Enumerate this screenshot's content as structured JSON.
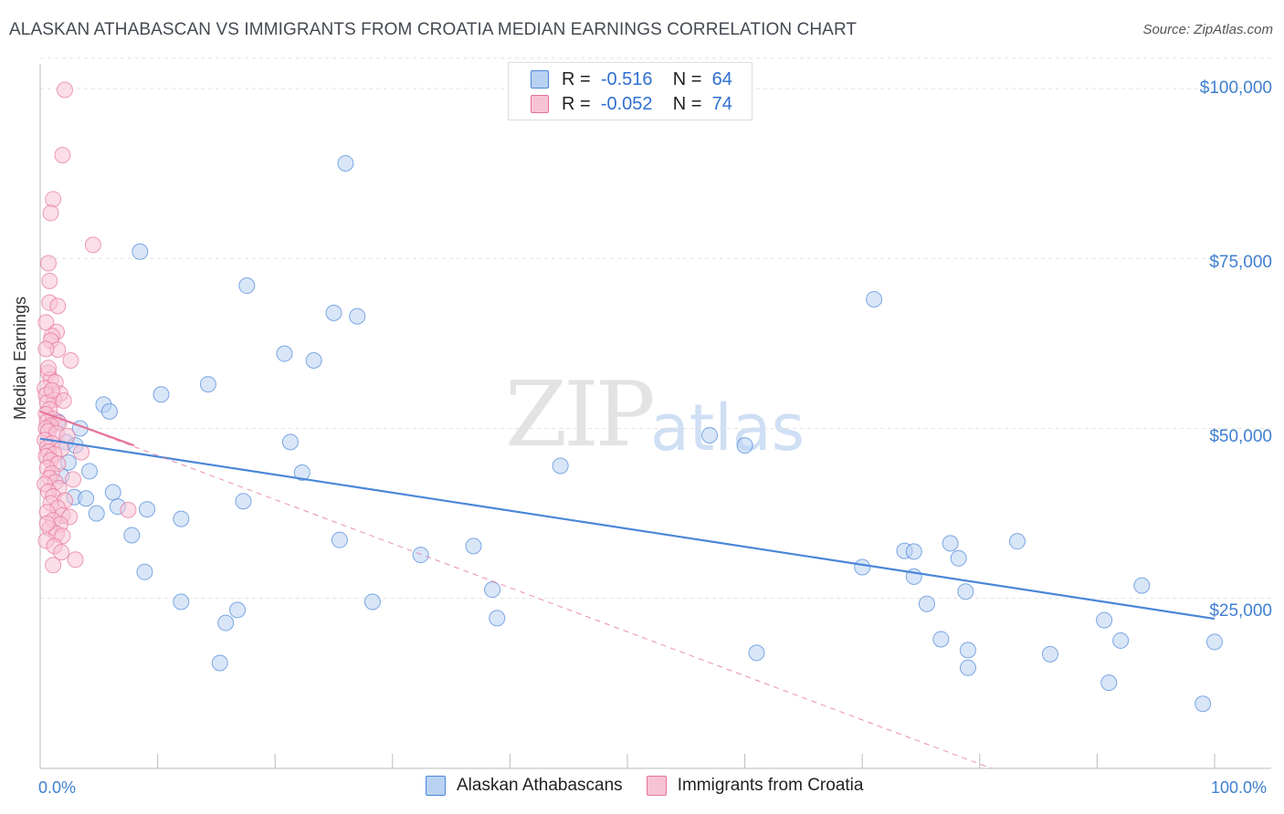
{
  "header": {
    "title": "ALASKAN ATHABASCAN VS IMMIGRANTS FROM CROATIA MEDIAN EARNINGS CORRELATION CHART",
    "source": "Source: ZipAtlas.com"
  },
  "watermark": {
    "zip": "ZIP",
    "atlas": "atlas"
  },
  "legend": {
    "row1": {
      "r_label": "R =",
      "r_value": "-0.516",
      "n_label": "N =",
      "n_value": "64"
    },
    "row2": {
      "r_label": "R =",
      "r_value": "-0.052",
      "n_label": "N =",
      "n_value": "74"
    }
  },
  "chart_data": {
    "type": "scatter",
    "title": "ALASKAN ATHABASCAN VS IMMIGRANTS FROM CROATIA MEDIAN EARNINGS CORRELATION CHART",
    "xlabel": "",
    "ylabel": "Median Earnings",
    "xlim": [
      0,
      100
    ],
    "ylim": [
      0,
      105000
    ],
    "x_tick_labels": [
      "0.0%",
      "100.0%"
    ],
    "y_ticks": [
      25000,
      50000,
      75000,
      100000
    ],
    "y_tick_labels": [
      "$25,000",
      "$50,000",
      "$75,000",
      "$100,000"
    ],
    "colors": {
      "blue": "#4a86d8",
      "pink": "#e5739a",
      "blue_fill": "#b9d2f2",
      "pink_fill": "#f7c3d4"
    },
    "series": [
      {
        "name": "Alaskan Athabascans",
        "color": "#4a86d8",
        "trend": {
          "x": [
            0,
            100
          ],
          "y": [
            48500,
            22000
          ],
          "style": "solid"
        },
        "points": [
          [
            26.0,
            89000
          ],
          [
            8.5,
            76000
          ],
          [
            17.6,
            71000
          ],
          [
            71.0,
            69000
          ],
          [
            25.0,
            67000
          ],
          [
            27.0,
            66500
          ],
          [
            20.8,
            61000
          ],
          [
            23.3,
            60000
          ],
          [
            14.3,
            56500
          ],
          [
            10.3,
            55000
          ],
          [
            5.4,
            53500
          ],
          [
            5.9,
            52500
          ],
          [
            3.4,
            50000
          ],
          [
            2.2,
            48000
          ],
          [
            57.0,
            49000
          ],
          [
            21.3,
            48000
          ],
          [
            60.0,
            47500
          ],
          [
            2.4,
            45000
          ],
          [
            44.3,
            44500
          ],
          [
            4.2,
            43700
          ],
          [
            22.3,
            43500
          ],
          [
            6.2,
            40600
          ],
          [
            2.9,
            39900
          ],
          [
            3.9,
            39700
          ],
          [
            17.3,
            39300
          ],
          [
            6.6,
            38500
          ],
          [
            9.1,
            38100
          ],
          [
            4.8,
            37500
          ],
          [
            12.0,
            36700
          ],
          [
            7.8,
            34300
          ],
          [
            25.5,
            33600
          ],
          [
            36.9,
            32700
          ],
          [
            73.6,
            32000
          ],
          [
            74.4,
            31900
          ],
          [
            77.5,
            33100
          ],
          [
            83.2,
            33400
          ],
          [
            32.4,
            31400
          ],
          [
            78.2,
            30900
          ],
          [
            70.0,
            29600
          ],
          [
            8.9,
            28900
          ],
          [
            74.4,
            28200
          ],
          [
            93.8,
            26900
          ],
          [
            78.8,
            26000
          ],
          [
            38.5,
            26300
          ],
          [
            12.0,
            24500
          ],
          [
            28.3,
            24500
          ],
          [
            16.8,
            23300
          ],
          [
            75.5,
            24200
          ],
          [
            38.9,
            22100
          ],
          [
            90.6,
            21800
          ],
          [
            15.8,
            21400
          ],
          [
            61.0,
            17000
          ],
          [
            76.7,
            19000
          ],
          [
            79.0,
            17400
          ],
          [
            86.0,
            16800
          ],
          [
            92.0,
            18800
          ],
          [
            100.0,
            18600
          ],
          [
            15.3,
            15500
          ],
          [
            79.0,
            14800
          ],
          [
            91.0,
            12600
          ],
          [
            99.0,
            9500
          ],
          [
            1.5,
            51000
          ],
          [
            3.0,
            47500
          ],
          [
            1.8,
            43000
          ]
        ]
      },
      {
        "name": "Immigrants from Croatia",
        "color": "#e5739a",
        "trend": {
          "x": [
            0,
            8
          ],
          "y": [
            52500,
            47500
          ],
          "style": "solid",
          "extended_x": [
            0,
            81
          ],
          "extended_y": [
            52500,
            0
          ],
          "extended_style": "dashed"
        },
        "points": [
          [
            2.1,
            99800
          ],
          [
            1.9,
            90200
          ],
          [
            1.1,
            83700
          ],
          [
            0.9,
            81700
          ],
          [
            4.5,
            77000
          ],
          [
            0.7,
            74300
          ],
          [
            0.8,
            71700
          ],
          [
            0.8,
            68500
          ],
          [
            1.5,
            68000
          ],
          [
            0.5,
            65600
          ],
          [
            1.4,
            64200
          ],
          [
            1.0,
            63600
          ],
          [
            0.9,
            62900
          ],
          [
            1.5,
            61600
          ],
          [
            2.6,
            60000
          ],
          [
            0.7,
            58200
          ],
          [
            0.9,
            57200
          ],
          [
            1.3,
            56800
          ],
          [
            0.4,
            55900
          ],
          [
            1.7,
            55100
          ],
          [
            0.5,
            54900
          ],
          [
            1.2,
            54200
          ],
          [
            2.0,
            54100
          ],
          [
            0.6,
            53800
          ],
          [
            0.8,
            52800
          ],
          [
            0.5,
            52100
          ],
          [
            1.1,
            51400
          ],
          [
            0.6,
            51000
          ],
          [
            1.6,
            50800
          ],
          [
            0.9,
            50400
          ],
          [
            0.5,
            50000
          ],
          [
            0.7,
            49600
          ],
          [
            1.4,
            49300
          ],
          [
            2.3,
            48900
          ],
          [
            0.4,
            48300
          ],
          [
            1.0,
            47800
          ],
          [
            0.6,
            47200
          ],
          [
            1.8,
            47000
          ],
          [
            0.7,
            46600
          ],
          [
            1.2,
            46200
          ],
          [
            0.5,
            45900
          ],
          [
            0.9,
            45300
          ],
          [
            1.5,
            44800
          ],
          [
            0.6,
            44200
          ],
          [
            1.0,
            43400
          ],
          [
            0.8,
            42700
          ],
          [
            1.3,
            42100
          ],
          [
            0.4,
            41800
          ],
          [
            1.6,
            41200
          ],
          [
            0.7,
            40700
          ],
          [
            1.1,
            40000
          ],
          [
            2.1,
            39400
          ],
          [
            0.9,
            39000
          ],
          [
            1.5,
            38300
          ],
          [
            7.5,
            38000
          ],
          [
            0.6,
            37700
          ],
          [
            1.9,
            37200
          ],
          [
            2.5,
            37000
          ],
          [
            1.1,
            36500
          ],
          [
            1.7,
            35900
          ],
          [
            0.8,
            35300
          ],
          [
            1.4,
            34500
          ],
          [
            1.9,
            34200
          ],
          [
            0.5,
            33500
          ],
          [
            1.2,
            32700
          ],
          [
            1.8,
            31800
          ],
          [
            3.0,
            30700
          ],
          [
            1.1,
            29900
          ],
          [
            0.7,
            58900
          ],
          [
            0.5,
            61700
          ],
          [
            1.0,
            55600
          ],
          [
            2.8,
            42500
          ],
          [
            3.5,
            46500
          ],
          [
            0.6,
            36000
          ]
        ]
      }
    ]
  },
  "bottom_legend": {
    "item1": "Alaskan Athabascans",
    "item2": "Immigrants from Croatia"
  }
}
